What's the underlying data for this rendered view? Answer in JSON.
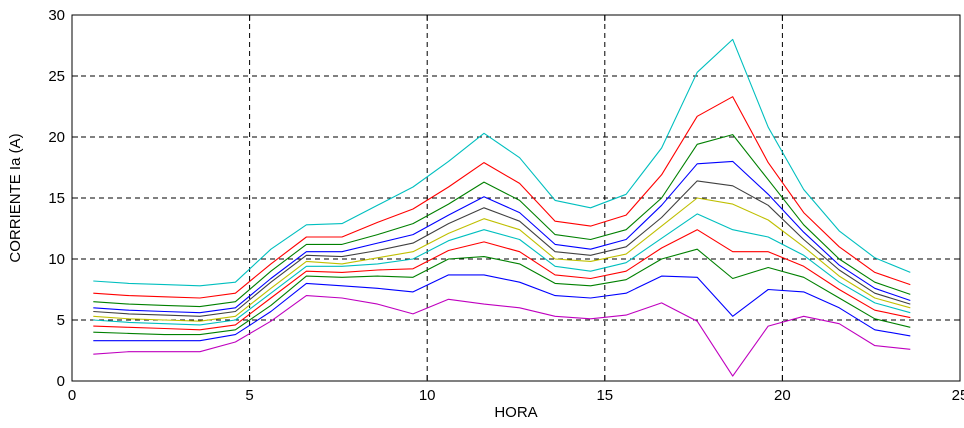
{
  "chart_data": {
    "type": "line",
    "xlabel": "HORA",
    "ylabel": "CORRIENTE Ia (A)",
    "xlim": [
      0,
      25
    ],
    "ylim": [
      0,
      30
    ],
    "xticks": [
      0,
      5,
      10,
      15,
      20,
      25
    ],
    "yticks": [
      0,
      5,
      10,
      15,
      20,
      25,
      30
    ],
    "xtick_labels": [
      "0",
      "5",
      "10",
      "15",
      "20",
      "25"
    ],
    "ytick_labels": [
      "0",
      "5",
      "10",
      "15",
      "20",
      "25",
      "30"
    ],
    "grid": true,
    "grid_style": "dashed",
    "x": [
      0.6,
      1.6,
      2.6,
      3.6,
      4.6,
      5.6,
      6.6,
      7.6,
      8.6,
      9.6,
      10.6,
      11.6,
      12.6,
      13.6,
      14.6,
      15.6,
      16.6,
      17.6,
      18.6,
      19.6,
      20.6,
      21.6,
      22.6,
      23.6
    ],
    "series": [
      {
        "color": "#00bfbf",
        "values": [
          8.2,
          8.0,
          7.9,
          7.8,
          8.1,
          10.8,
          12.8,
          12.9,
          14.4,
          15.9,
          18.0,
          20.3,
          18.3,
          14.8,
          14.2,
          15.3,
          19.1,
          25.3,
          28.0,
          20.8,
          15.7,
          12.3,
          10.1,
          8.9
        ]
      },
      {
        "color": "#ff0000",
        "values": [
          7.2,
          7.0,
          6.9,
          6.8,
          7.2,
          9.6,
          11.8,
          11.8,
          13.0,
          14.1,
          15.9,
          17.9,
          16.2,
          13.1,
          12.7,
          13.6,
          16.9,
          21.7,
          23.3,
          17.9,
          13.8,
          11.0,
          8.9,
          7.9
        ]
      },
      {
        "color": "#008000",
        "values": [
          6.5,
          6.3,
          6.2,
          6.1,
          6.5,
          9.0,
          11.2,
          11.2,
          12.0,
          12.9,
          14.5,
          16.3,
          14.8,
          12.0,
          11.6,
          12.4,
          15.0,
          19.4,
          20.2,
          16.5,
          12.8,
          10.0,
          8.1,
          7.1
        ]
      },
      {
        "color": "#0000ff",
        "values": [
          6.0,
          5.8,
          5.7,
          5.6,
          6.0,
          8.4,
          10.6,
          10.6,
          11.3,
          12.0,
          13.6,
          15.1,
          13.8,
          11.2,
          10.8,
          11.6,
          14.4,
          17.8,
          18.0,
          15.3,
          12.2,
          9.5,
          7.6,
          6.6
        ]
      },
      {
        "color": "#404040",
        "values": [
          5.7,
          5.5,
          5.4,
          5.3,
          5.7,
          8.1,
          10.3,
          10.2,
          10.7,
          11.3,
          12.9,
          14.2,
          13.1,
          10.6,
          10.3,
          11.0,
          13.4,
          16.4,
          16.0,
          14.4,
          11.6,
          9.1,
          7.2,
          6.3
        ]
      },
      {
        "color": "#bfbf00",
        "values": [
          5.3,
          5.1,
          5.0,
          4.9,
          5.3,
          7.6,
          9.8,
          9.6,
          10.1,
          10.6,
          12.1,
          13.3,
          12.4,
          10.0,
          9.8,
          10.4,
          12.7,
          15.0,
          14.5,
          13.2,
          11.0,
          8.6,
          6.8,
          6.0
        ]
      },
      {
        "color": "#00bfbf",
        "values": [
          5.0,
          4.8,
          4.7,
          4.6,
          5.0,
          7.2,
          9.4,
          9.4,
          9.6,
          10.0,
          11.5,
          12.4,
          11.6,
          9.4,
          9.0,
          9.7,
          11.7,
          13.7,
          12.4,
          11.8,
          10.3,
          8.1,
          6.4,
          5.6
        ]
      },
      {
        "color": "#ff0000",
        "values": [
          4.5,
          4.4,
          4.3,
          4.2,
          4.6,
          6.8,
          9.0,
          8.9,
          9.1,
          9.2,
          10.7,
          11.4,
          10.6,
          8.7,
          8.4,
          9.0,
          10.9,
          12.4,
          10.6,
          10.6,
          9.4,
          7.5,
          5.8,
          5.2
        ]
      },
      {
        "color": "#008000",
        "values": [
          4.0,
          3.9,
          3.8,
          3.8,
          4.2,
          6.2,
          8.6,
          8.5,
          8.6,
          8.5,
          10.0,
          10.2,
          9.6,
          8.0,
          7.8,
          8.3,
          10.0,
          10.8,
          8.4,
          9.3,
          8.5,
          6.8,
          5.1,
          4.4
        ]
      },
      {
        "color": "#0000ff",
        "values": [
          3.3,
          3.3,
          3.3,
          3.3,
          3.8,
          5.7,
          8.0,
          7.8,
          7.6,
          7.3,
          8.7,
          8.7,
          8.1,
          7.0,
          6.8,
          7.2,
          8.6,
          8.5,
          5.3,
          7.5,
          7.3,
          6.0,
          4.2,
          3.7
        ]
      },
      {
        "color": "#bf00bf",
        "values": [
          2.2,
          2.4,
          2.4,
          2.4,
          3.2,
          4.9,
          7.0,
          6.8,
          6.3,
          5.5,
          6.7,
          6.3,
          6.0,
          5.3,
          5.1,
          5.4,
          6.4,
          4.9,
          0.4,
          4.5,
          5.3,
          4.7,
          2.9,
          2.6
        ]
      }
    ]
  }
}
